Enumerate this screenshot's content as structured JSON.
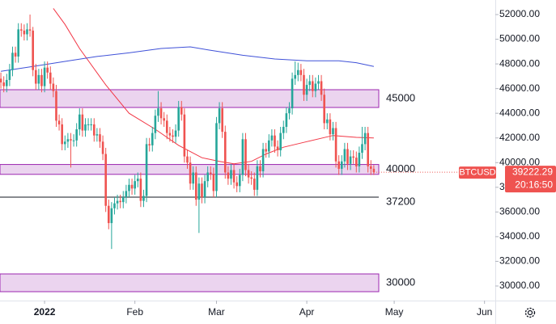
{
  "chart_data": {
    "type": "candlestick",
    "x": [
      -15,
      -14,
      -13,
      -12,
      -11,
      -10,
      -9,
      -8,
      -7,
      -6,
      -5,
      -4,
      -3,
      -2,
      -1,
      0,
      1,
      2,
      3,
      4,
      5,
      6,
      7,
      8,
      9,
      10,
      11,
      12,
      13,
      14,
      15,
      16,
      17,
      18,
      19,
      20,
      21,
      22,
      23,
      24,
      25,
      26,
      27,
      28,
      29,
      30,
      31,
      32,
      33,
      34,
      35,
      36,
      37,
      38,
      39,
      40,
      41,
      42,
      43,
      44,
      45,
      46,
      47,
      48,
      49,
      50,
      51,
      52,
      53,
      54,
      55,
      56,
      57,
      58,
      59,
      60,
      61,
      62,
      63,
      64,
      65,
      66,
      67,
      68,
      69,
      70,
      71,
      72,
      73,
      74,
      75,
      76,
      77,
      78,
      79,
      80,
      81,
      82,
      83,
      84,
      85,
      86,
      87,
      88,
      89,
      90,
      91,
      92,
      93,
      94,
      95,
      96,
      97,
      98,
      99,
      100,
      101,
      102,
      103,
      104,
      105,
      106,
      107,
      108,
      109,
      110,
      111,
      112,
      113
    ],
    "open": [
      46800,
      46500,
      46200,
      46700,
      47500,
      48900,
      48600,
      50800,
      50700,
      50400,
      50800,
      50700,
      47500,
      46400,
      47100,
      46200,
      47700,
      47300,
      46400,
      45800,
      43400,
      43100,
      41500,
      41700,
      41900,
      41800,
      41800,
      42700,
      43900,
      42600,
      43100,
      43100,
      43100,
      42200,
      42300,
      41700,
      40700,
      36500,
      35100,
      36300,
      36700,
      36900,
      36800,
      37200,
      37700,
      38200,
      37900,
      38500,
      38700,
      36900,
      37300,
      41500,
      41400,
      42400,
      43800,
      44400,
      43600,
      43400,
      42400,
      42200,
      42100,
      42600,
      44500,
      43900,
      40500,
      40000,
      38300,
      39200,
      37000,
      38300,
      37200,
      38500,
      39200,
      39100,
      37700,
      43200,
      44400,
      42500,
      39200,
      38700,
      39400,
      38400,
      38100,
      39000,
      41900,
      39400,
      38800,
      38700,
      37800,
      39700,
      39300,
      41100,
      40900,
      41800,
      42200,
      41300,
      41000,
      42400,
      42900,
      44000,
      44400,
      46800,
      47100,
      47500,
      47100,
      45500,
      46300,
      46600,
      45800,
      46400,
      46600,
      45500,
      43200,
      43500,
      42300,
      42800,
      40100,
      39500,
      40100,
      41100,
      39900,
      40500,
      40400,
      39700,
      40800,
      41500,
      42400,
      39700,
      39500
    ],
    "high": [
      47300,
      47000,
      47200,
      48000,
      49400,
      49400,
      51300,
      51300,
      51200,
      51300,
      52000,
      51000,
      48000,
      47600,
      47600,
      48200,
      48200,
      47800,
      46900,
      46300,
      43900,
      43600,
      42200,
      42400,
      42400,
      42300,
      43200,
      44400,
      44400,
      43600,
      43600,
      43600,
      43600,
      42800,
      42800,
      42200,
      41200,
      37000,
      36800,
      37200,
      37400,
      37400,
      37700,
      38200,
      38700,
      38700,
      39000,
      39200,
      39200,
      37800,
      42000,
      42000,
      42900,
      44300,
      45800,
      44900,
      44100,
      43900,
      42900,
      42700,
      43100,
      45000,
      45000,
      44400,
      41000,
      40500,
      39700,
      39700,
      38800,
      38800,
      39000,
      39700,
      39700,
      39600,
      43700,
      44900,
      44900,
      43000,
      39700,
      39900,
      39900,
      38900,
      39500,
      42400,
      42400,
      39900,
      39300,
      39200,
      40200,
      40200,
      41600,
      41600,
      42300,
      42700,
      42700,
      41800,
      42900,
      43400,
      44500,
      44900,
      47300,
      48200,
      48100,
      48000,
      47600,
      46800,
      47100,
      47100,
      46900,
      47100,
      47100,
      46000,
      44000,
      44000,
      43300,
      43300,
      40600,
      40600,
      41600,
      41600,
      41000,
      41000,
      40900,
      41300,
      42900,
      42900,
      42900,
      40200,
      39800
    ],
    "low": [
      46000,
      45700,
      45700,
      46200,
      47000,
      48100,
      48100,
      50200,
      49900,
      49900,
      50200,
      47000,
      45900,
      45900,
      45700,
      45700,
      46800,
      45900,
      45300,
      42900,
      42600,
      41000,
      41000,
      41200,
      39600,
      41300,
      41300,
      42200,
      42100,
      42100,
      42600,
      42600,
      41700,
      41700,
      41200,
      40200,
      36000,
      34600,
      33000,
      35800,
      36200,
      36300,
      36300,
      36700,
      37200,
      37400,
      37400,
      38000,
      36400,
      36400,
      36800,
      40900,
      40900,
      41900,
      43300,
      43100,
      42900,
      41900,
      41700,
      41600,
      41600,
      42100,
      43400,
      40000,
      39500,
      37800,
      37800,
      36500,
      34300,
      36700,
      36700,
      38000,
      38600,
      37200,
      37200,
      42700,
      42000,
      38700,
      38200,
      38200,
      37900,
      37600,
      37600,
      38500,
      38900,
      38300,
      38200,
      37300,
      37300,
      38800,
      38800,
      40400,
      40400,
      41300,
      40800,
      40500,
      40500,
      41900,
      42400,
      43500,
      43900,
      46300,
      46600,
      46600,
      45000,
      45000,
      45800,
      45300,
      45300,
      45900,
      45000,
      42700,
      42700,
      41800,
      41800,
      39600,
      39000,
      39000,
      39600,
      39400,
      39400,
      39900,
      39200,
      39200,
      40300,
      41000,
      39200,
      39000,
      39000
    ],
    "close": [
      46500,
      46200,
      46700,
      47500,
      48900,
      48600,
      50800,
      50700,
      50400,
      50800,
      50700,
      47500,
      46400,
      47100,
      46200,
      47700,
      47300,
      46400,
      45800,
      43400,
      43100,
      41500,
      41700,
      41900,
      41800,
      41800,
      42700,
      43900,
      42600,
      43100,
      43100,
      43100,
      42200,
      42300,
      41700,
      40700,
      36500,
      35100,
      36300,
      36700,
      36900,
      36800,
      37200,
      37700,
      38200,
      37900,
      38500,
      38700,
      36900,
      37300,
      41500,
      41400,
      42400,
      43800,
      44400,
      43600,
      43400,
      42400,
      42200,
      42100,
      42600,
      44500,
      43900,
      40500,
      40000,
      38300,
      39200,
      37000,
      38300,
      37200,
      38500,
      39200,
      39100,
      37700,
      43200,
      44400,
      42500,
      39200,
      38700,
      39400,
      38400,
      38100,
      39000,
      41900,
      39400,
      38800,
      38700,
      37800,
      39700,
      39300,
      41100,
      40900,
      41800,
      42200,
      41300,
      41000,
      42400,
      42900,
      44000,
      44400,
      46800,
      47100,
      47500,
      47100,
      45500,
      46300,
      46600,
      45800,
      46400,
      46600,
      45500,
      43200,
      43500,
      42300,
      42800,
      40100,
      39500,
      40100,
      41100,
      39900,
      40500,
      40400,
      39700,
      40800,
      41500,
      42400,
      39700,
      39500,
      39222.29
    ],
    "up_color": "#26a69a",
    "down_color": "#ef5350",
    "indicators": [
      {
        "color": "#f23645",
        "x": [
          3,
          7,
          12,
          21,
          29,
          38,
          46,
          54,
          60,
          65,
          71,
          76,
          82,
          90,
          99,
          107,
          113
        ],
        "values": [
          52500,
          51200,
          49250,
          46300,
          44000,
          42700,
          41400,
          40400,
          40100,
          39900,
          40100,
          40700,
          41250,
          41700,
          42200,
          42050,
          42000
        ]
      },
      {
        "color": "#3f51d8",
        "x": [
          -15,
          -4,
          7,
          18,
          29,
          40,
          50,
          57,
          68,
          79,
          90,
          101,
          107,
          113
        ],
        "values": [
          47400,
          47800,
          48200,
          48600,
          48900,
          49250,
          49380,
          49100,
          48700,
          48400,
          48250,
          48250,
          48100,
          47800
        ]
      }
    ],
    "zones": [
      {
        "label": "45000",
        "low": 44470,
        "high": 45910
      },
      {
        "label": "40000",
        "low": 39050,
        "high": 39850
      },
      {
        "label": "30000",
        "low": 29540,
        "high": 30980
      }
    ],
    "lines": [
      {
        "label": "37200",
        "value": 37200
      }
    ],
    "last_price": {
      "symbol": "BTCUSD",
      "value": 39222.29,
      "countdown": "20:16:50"
    },
    "xlim": [
      -15.3,
      154.7
    ],
    "xticks": [
      {
        "value": 0,
        "label": "2022"
      },
      {
        "value": 31,
        "label": "Feb"
      },
      {
        "value": 59,
        "label": "Mar"
      },
      {
        "value": 90,
        "label": "Apr"
      },
      {
        "value": 120,
        "label": "May"
      },
      {
        "value": 151,
        "label": "Jun"
      }
    ],
    "ylim": [
      28820,
      53180
    ],
    "yticks": [
      {
        "value": 30000,
        "label": "30000.00"
      },
      {
        "value": 32000,
        "label": "32000.00"
      },
      {
        "value": 34000,
        "label": "34000.00"
      },
      {
        "value": 36000,
        "label": "36000.00"
      },
      {
        "value": 38000,
        "label": "38000.00"
      },
      {
        "value": 40000,
        "label": "40000.00"
      },
      {
        "value": 42000,
        "label": "42000.00"
      },
      {
        "value": 44000,
        "label": "44000.00"
      },
      {
        "value": 46000,
        "label": "46000.00"
      },
      {
        "value": 48000,
        "label": "48000.00"
      },
      {
        "value": 50000,
        "label": "50000.00"
      },
      {
        "value": 52000,
        "label": "52000.00"
      }
    ],
    "grid": false
  }
}
